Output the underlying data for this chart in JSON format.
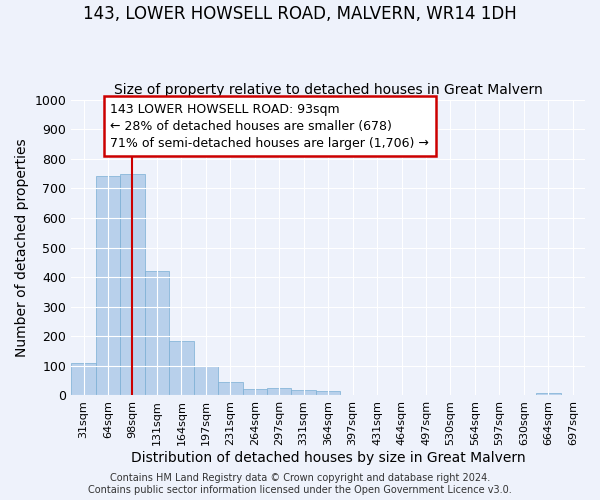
{
  "title": "143, LOWER HOWSELL ROAD, MALVERN, WR14 1DH",
  "subtitle": "Size of property relative to detached houses in Great Malvern",
  "xlabel": "Distribution of detached houses by size in Great Malvern",
  "ylabel": "Number of detached properties",
  "bin_labels": [
    "31sqm",
    "64sqm",
    "98sqm",
    "131sqm",
    "164sqm",
    "197sqm",
    "231sqm",
    "264sqm",
    "297sqm",
    "331sqm",
    "364sqm",
    "397sqm",
    "431sqm",
    "464sqm",
    "497sqm",
    "530sqm",
    "564sqm",
    "597sqm",
    "630sqm",
    "664sqm",
    "697sqm"
  ],
  "bin_values": [
    110,
    740,
    750,
    420,
    185,
    98,
    46,
    22,
    25,
    20,
    15,
    0,
    0,
    0,
    0,
    0,
    0,
    0,
    0,
    8,
    0
  ],
  "bar_color": "#b8d0eb",
  "bar_edge_color": "#7aafd4",
  "background_color": "#eef2fb",
  "red_line_x": 2.0,
  "annotation_text": "143 LOWER HOWSELL ROAD: 93sqm\n← 28% of detached houses are smaller (678)\n71% of semi-detached houses are larger (1,706) →",
  "annotation_box_facecolor": "#ffffff",
  "annotation_box_edgecolor": "#cc0000",
  "footer_text": "Contains HM Land Registry data © Crown copyright and database right 2024.\nContains public sector information licensed under the Open Government Licence v3.0.",
  "ylim": [
    0,
    1000
  ],
  "yticks": [
    0,
    100,
    200,
    300,
    400,
    500,
    600,
    700,
    800,
    900,
    1000
  ],
  "title_fontsize": 12,
  "subtitle_fontsize": 10,
  "axis_label_fontsize": 10,
  "tick_fontsize": 9,
  "annot_fontsize": 9,
  "footer_fontsize": 7
}
